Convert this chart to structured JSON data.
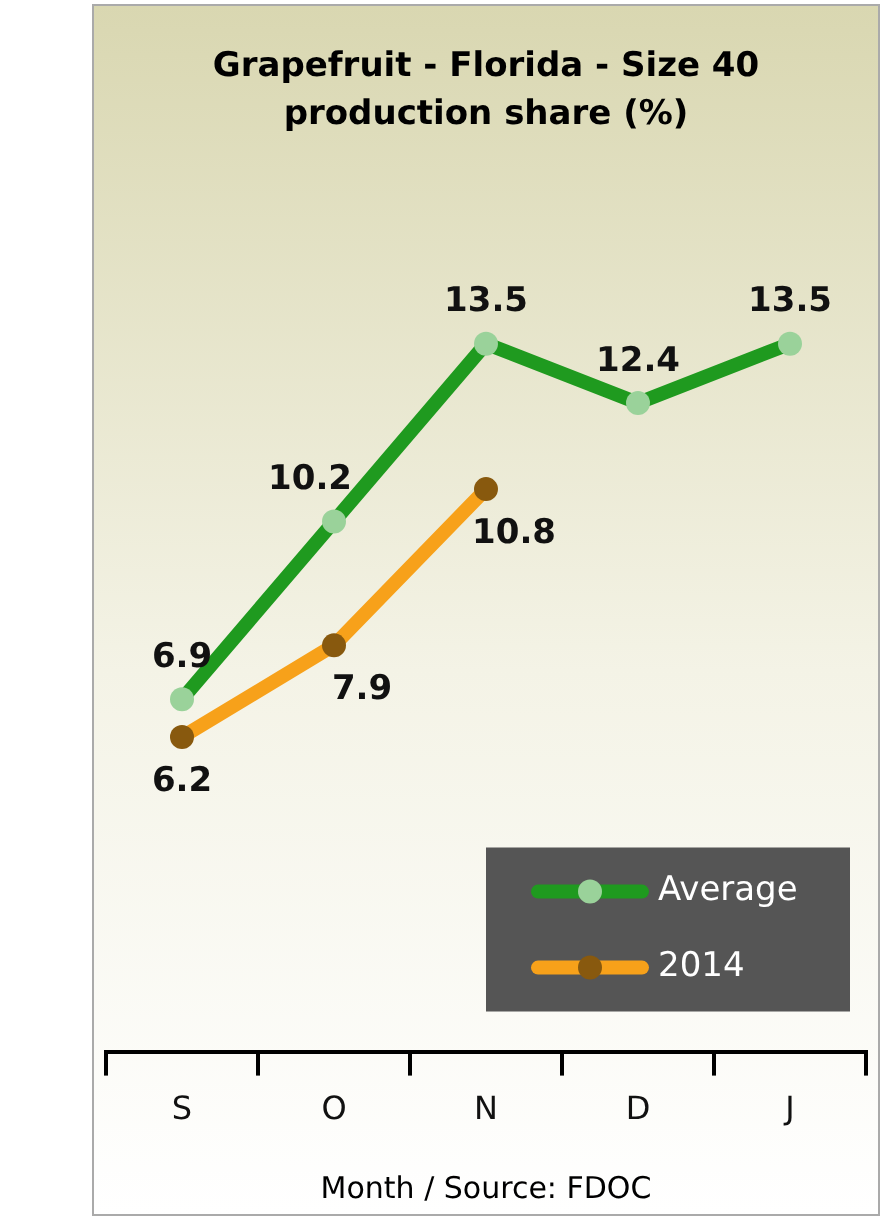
{
  "chart_data": {
    "type": "line",
    "title": "Grapefruit - Florida - Size 40 production share (%)",
    "xlabel": "Month / Source: FDOC",
    "categories": [
      "S",
      "O",
      "N",
      "D",
      "J"
    ],
    "series": [
      {
        "name": "Average",
        "color": "#1f9a1f",
        "values": [
          6.9,
          10.2,
          13.5,
          12.4,
          13.5
        ]
      },
      {
        "name": "2014",
        "color": "#f7a11a",
        "values": [
          6.2,
          7.9,
          10.8,
          null,
          null
        ]
      }
    ],
    "data_labels": true,
    "legend": "bottom right",
    "marker": "circle",
    "line_style": "solid",
    "grid": false
  }
}
